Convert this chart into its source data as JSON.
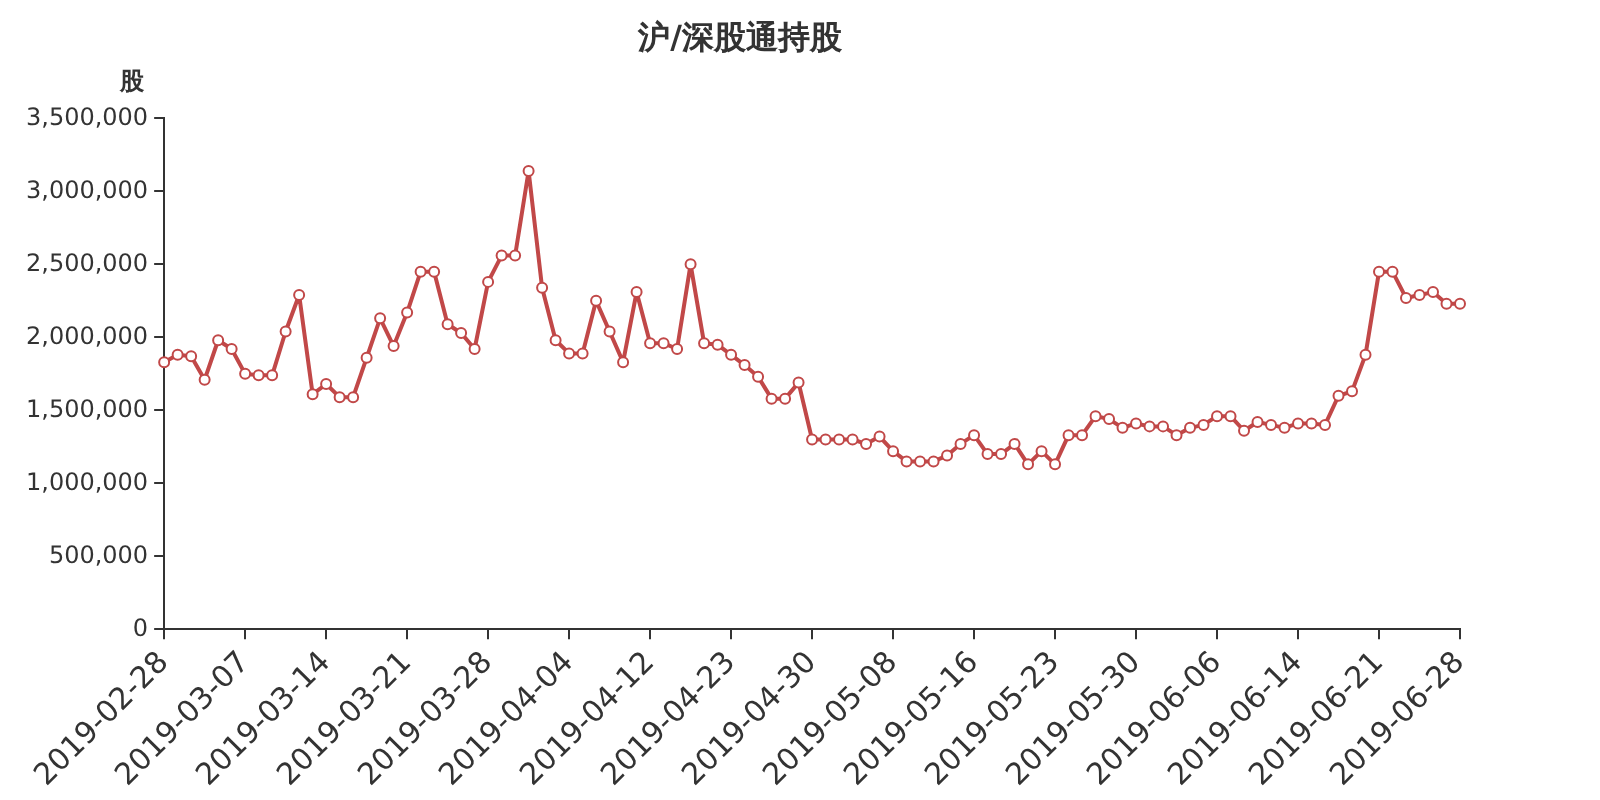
{
  "chart_data": {
    "type": "line",
    "title": "沪/深股通持股",
    "ylabel": "股",
    "categories": [
      "2019-02-28",
      null,
      null,
      null,
      null,
      null,
      "2019-03-07",
      null,
      null,
      null,
      null,
      null,
      "2019-03-14",
      null,
      null,
      null,
      null,
      null,
      "2019-03-21",
      null,
      null,
      null,
      null,
      null,
      "2019-03-28",
      null,
      null,
      null,
      null,
      null,
      "2019-04-04",
      null,
      null,
      null,
      null,
      null,
      "2019-04-12",
      null,
      null,
      null,
      null,
      null,
      "2019-04-23",
      null,
      null,
      null,
      null,
      null,
      "2019-04-30",
      null,
      null,
      null,
      null,
      null,
      "2019-05-08",
      null,
      null,
      null,
      null,
      null,
      "2019-05-16",
      null,
      null,
      null,
      null,
      null,
      "2019-05-23",
      null,
      null,
      null,
      null,
      null,
      "2019-05-30",
      null,
      null,
      null,
      null,
      null,
      "2019-06-06",
      null,
      null,
      null,
      null,
      null,
      "2019-06-14",
      null,
      null,
      null,
      null,
      null,
      "2019-06-21",
      null,
      null,
      null,
      null,
      null,
      "2019-06-28"
    ],
    "series": [
      {
        "color": "#c14848",
        "values": [
          1830000,
          1880000,
          1870000,
          1710000,
          1980000,
          1920000,
          1750000,
          1740000,
          1740000,
          2040000,
          2290000,
          1610000,
          1680000,
          1590000,
          1590000,
          1860000,
          2130000,
          1940000,
          2170000,
          2450000,
          2450000,
          2090000,
          2030000,
          1920000,
          2380000,
          2560000,
          2560000,
          3140000,
          2340000,
          1980000,
          1890000,
          1890000,
          2250000,
          2040000,
          1830000,
          2310000,
          1960000,
          1960000,
          1920000,
          2500000,
          1960000,
          1950000,
          1880000,
          1810000,
          1730000,
          1580000,
          1580000,
          1690000,
          1300000,
          1300000,
          1300000,
          1300000,
          1270000,
          1320000,
          1220000,
          1150000,
          1150000,
          1150000,
          1190000,
          1270000,
          1330000,
          1200000,
          1200000,
          1270000,
          1130000,
          1220000,
          1130000,
          1330000,
          1330000,
          1460000,
          1440000,
          1380000,
          1410000,
          1390000,
          1390000,
          1330000,
          1380000,
          1400000,
          1460000,
          1460000,
          1360000,
          1420000,
          1400000,
          1380000,
          1410000,
          1410000,
          1400000,
          1600000,
          1630000,
          1880000,
          2450000,
          2450000,
          2270000,
          2290000,
          2310000,
          2230000,
          2230000
        ]
      }
    ],
    "ylim": [
      0,
      3500000
    ],
    "yticks": [
      {
        "value": 0,
        "label": "0"
      },
      {
        "value": 500000,
        "label": "500,000"
      },
      {
        "value": 1000000,
        "label": "1,000,000"
      },
      {
        "value": 1500000,
        "label": "1,500,000"
      },
      {
        "value": 2000000,
        "label": "2,000,000"
      },
      {
        "value": 2500000,
        "label": "2,500,000"
      },
      {
        "value": 3000000,
        "label": "3,000,000"
      },
      {
        "value": 3500000,
        "label": "3,500,000"
      }
    ],
    "marker": "circle",
    "line_style": "solid",
    "legend": false
  }
}
